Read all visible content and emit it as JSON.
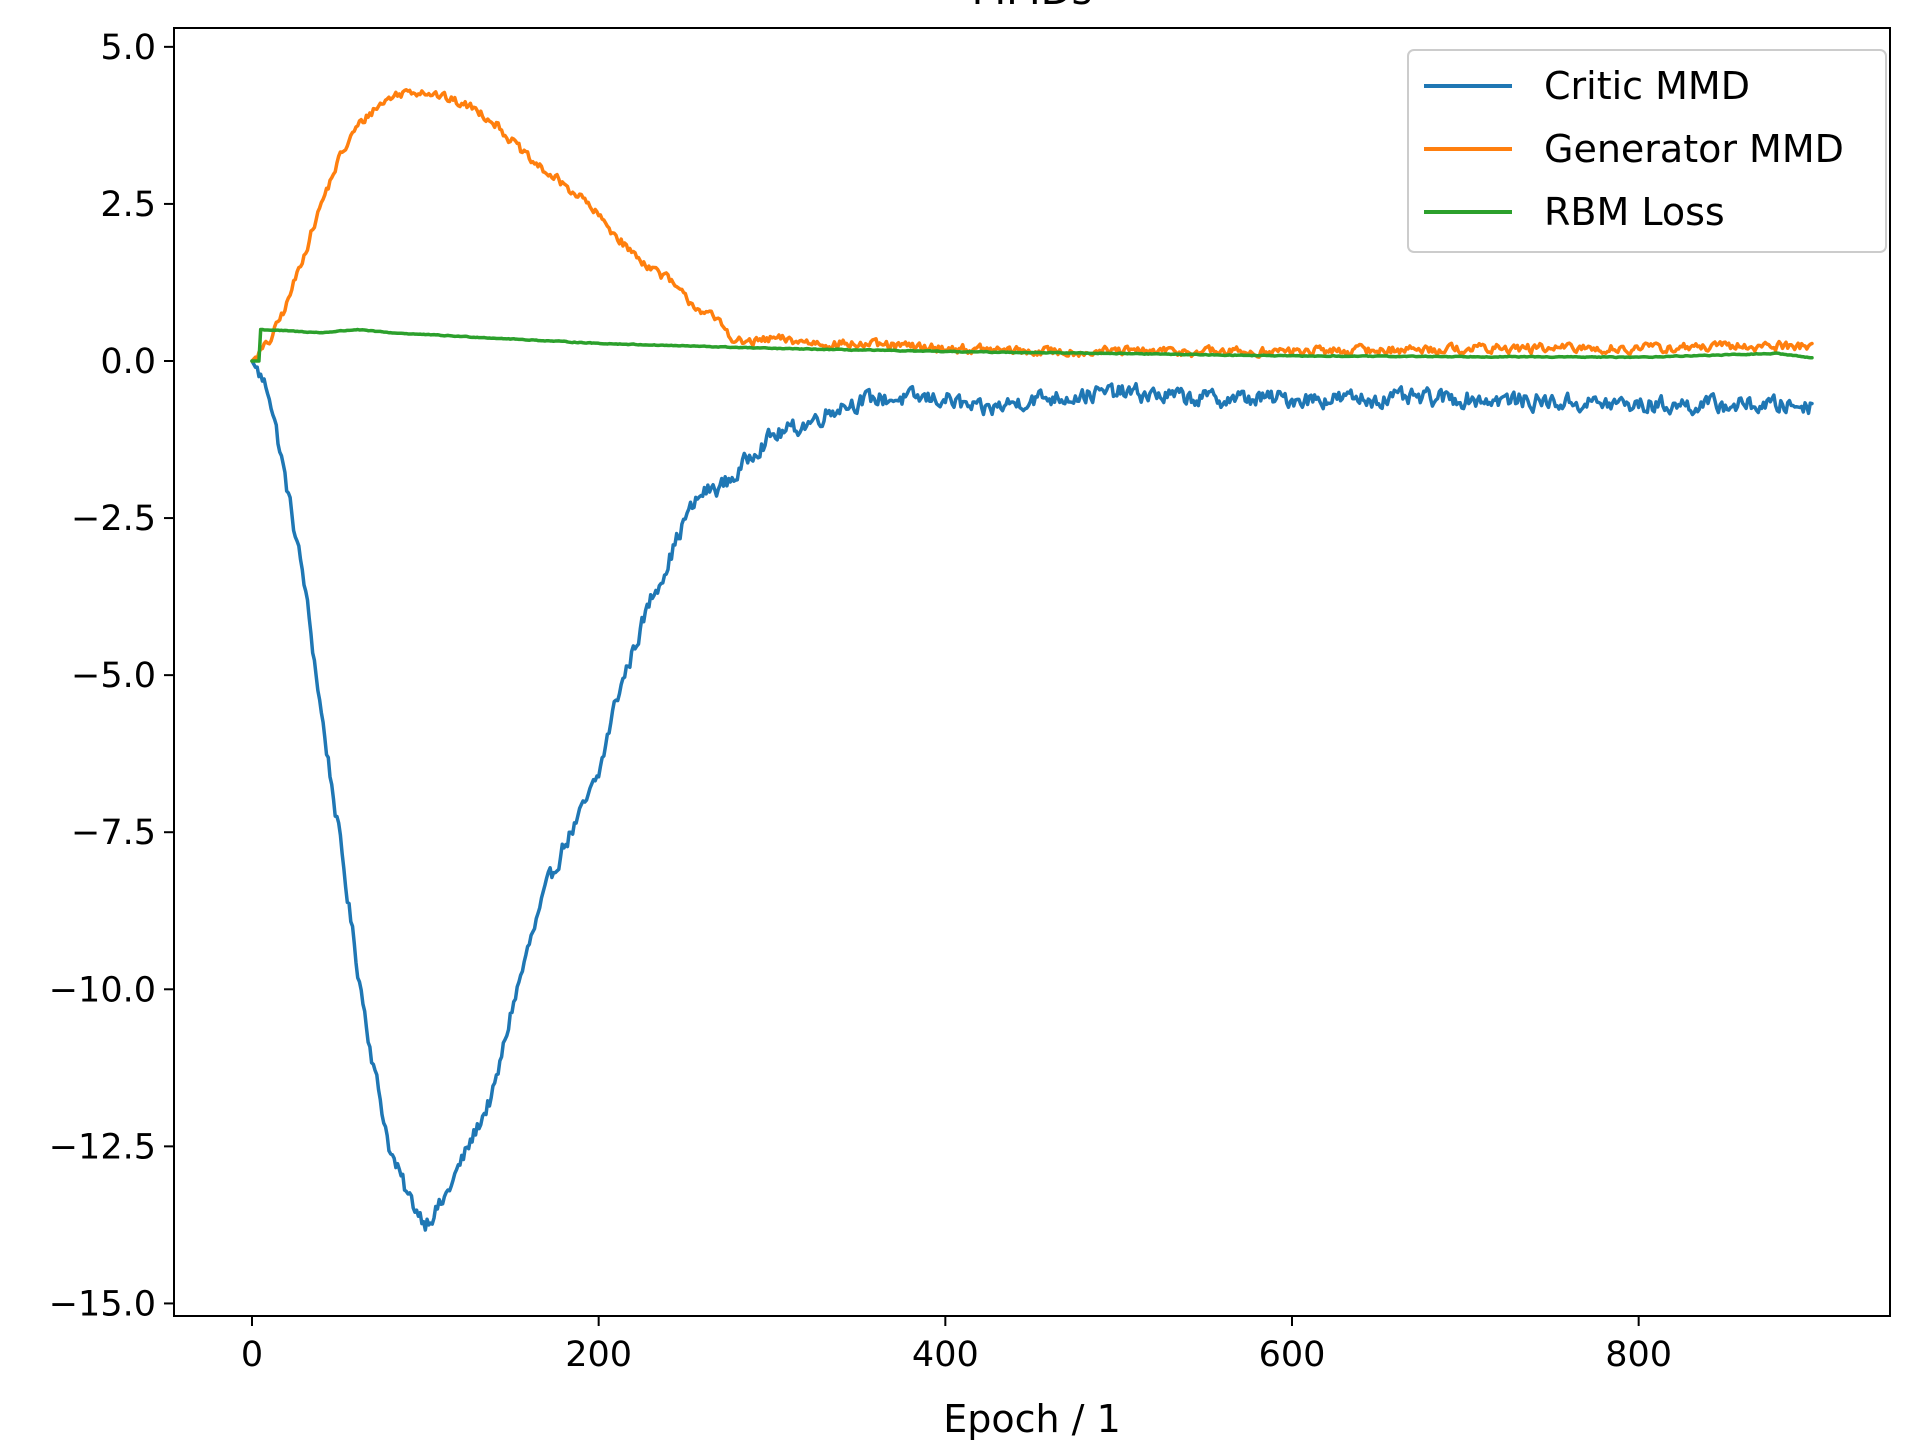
{
  "chart_data": {
    "type": "line",
    "title": "MMDs",
    "xlabel": "Epoch / 1",
    "ylabel": "",
    "xlim": [
      -45,
      945
    ],
    "ylim": [
      -15.2,
      5.3
    ],
    "xticks": [
      0,
      200,
      400,
      600,
      800
    ],
    "yticks": [
      5.0,
      2.5,
      0.0,
      -2.5,
      -5.0,
      -7.5,
      -10.0,
      -12.5,
      -15.0
    ],
    "grid": false,
    "legend_position": "top-right",
    "series": [
      {
        "name": "Critic MMD",
        "color": "#1f77b4",
        "noise": 0.22,
        "points": [
          [
            0,
            0
          ],
          [
            10,
            -0.5
          ],
          [
            20,
            -2.0
          ],
          [
            30,
            -3.5
          ],
          [
            40,
            -5.6
          ],
          [
            50,
            -7.5
          ],
          [
            60,
            -9.5
          ],
          [
            70,
            -11.2
          ],
          [
            80,
            -12.6
          ],
          [
            90,
            -13.3
          ],
          [
            100,
            -13.7
          ],
          [
            110,
            -13.4
          ],
          [
            120,
            -12.8
          ],
          [
            130,
            -12.2
          ],
          [
            140,
            -11.6
          ],
          [
            150,
            -10.3
          ],
          [
            160,
            -9.3
          ],
          [
            170,
            -8.4
          ],
          [
            180,
            -7.7
          ],
          [
            190,
            -7.2
          ],
          [
            200,
            -6.6
          ],
          [
            210,
            -5.4
          ],
          [
            220,
            -4.6
          ],
          [
            230,
            -3.8
          ],
          [
            240,
            -3.2
          ],
          [
            250,
            -2.5
          ],
          [
            260,
            -2.1
          ],
          [
            270,
            -2.0
          ],
          [
            280,
            -1.8
          ],
          [
            290,
            -1.4
          ],
          [
            300,
            -1.2
          ],
          [
            320,
            -1.0
          ],
          [
            340,
            -0.7
          ],
          [
            360,
            -0.6
          ],
          [
            400,
            -0.6
          ],
          [
            420,
            -0.8
          ],
          [
            450,
            -0.6
          ],
          [
            500,
            -0.5
          ],
          [
            550,
            -0.6
          ],
          [
            600,
            -0.6
          ],
          [
            700,
            -0.6
          ],
          [
            800,
            -0.7
          ],
          [
            900,
            -0.7
          ]
        ]
      },
      {
        "name": "Generator MMD",
        "color": "#ff7f0e",
        "noise": 0.12,
        "points": [
          [
            0,
            0
          ],
          [
            10,
            0.3
          ],
          [
            20,
            0.9
          ],
          [
            30,
            1.7
          ],
          [
            40,
            2.5
          ],
          [
            50,
            3.2
          ],
          [
            60,
            3.7
          ],
          [
            70,
            4.0
          ],
          [
            80,
            4.2
          ],
          [
            90,
            4.3
          ],
          [
            100,
            4.3
          ],
          [
            110,
            4.2
          ],
          [
            120,
            4.1
          ],
          [
            130,
            4.0
          ],
          [
            140,
            3.8
          ],
          [
            150,
            3.5
          ],
          [
            160,
            3.2
          ],
          [
            170,
            3.0
          ],
          [
            180,
            2.8
          ],
          [
            190,
            2.6
          ],
          [
            200,
            2.3
          ],
          [
            210,
            2.0
          ],
          [
            220,
            1.7
          ],
          [
            230,
            1.5
          ],
          [
            240,
            1.3
          ],
          [
            250,
            1.0
          ],
          [
            260,
            0.8
          ],
          [
            270,
            0.6
          ],
          [
            280,
            0.3
          ],
          [
            290,
            0.3
          ],
          [
            300,
            0.35
          ],
          [
            320,
            0.3
          ],
          [
            360,
            0.25
          ],
          [
            400,
            0.2
          ],
          [
            450,
            0.15
          ],
          [
            500,
            0.15
          ],
          [
            600,
            0.15
          ],
          [
            700,
            0.2
          ],
          [
            800,
            0.2
          ],
          [
            900,
            0.25
          ]
        ]
      },
      {
        "name": "RBM Loss",
        "color": "#2ca02c",
        "noise": 0.01,
        "points": [
          [
            0,
            0
          ],
          [
            4,
            0
          ],
          [
            5,
            0.5
          ],
          [
            20,
            0.48
          ],
          [
            40,
            0.45
          ],
          [
            60,
            0.5
          ],
          [
            80,
            0.45
          ],
          [
            100,
            0.42
          ],
          [
            150,
            0.35
          ],
          [
            200,
            0.28
          ],
          [
            250,
            0.24
          ],
          [
            300,
            0.2
          ],
          [
            400,
            0.15
          ],
          [
            500,
            0.12
          ],
          [
            600,
            0.08
          ],
          [
            700,
            0.07
          ],
          [
            800,
            0.06
          ],
          [
            880,
            0.12
          ],
          [
            900,
            0.05
          ]
        ]
      }
    ]
  }
}
